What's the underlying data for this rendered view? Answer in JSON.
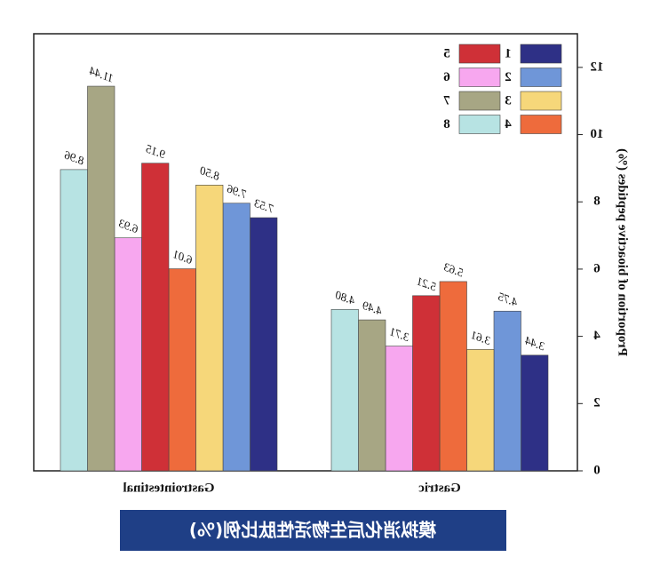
{
  "chart_data": {
    "type": "bar",
    "y_label": "Proportion of bioactive peptides (%)",
    "caption": "模拟消化后生物活性肽比例(%)",
    "categories": [
      "Gastric",
      "Gastrointestinal"
    ],
    "ylim": [
      0,
      13
    ],
    "yticks": [
      0,
      2,
      4,
      6,
      8,
      10,
      12
    ],
    "series": [
      {
        "name": "1",
        "color": "#2e3086",
        "values": [
          3.44,
          7.53
        ],
        "value_labels": [
          "3.44",
          "7.53"
        ]
      },
      {
        "name": "2",
        "color": "#6f96d8",
        "values": [
          4.75,
          7.96
        ],
        "value_labels": [
          "4.75",
          "7.96"
        ]
      },
      {
        "name": "3",
        "color": "#f6d77a",
        "values": [
          3.61,
          8.5
        ],
        "value_labels": [
          "3.61",
          "8.50"
        ]
      },
      {
        "name": "4",
        "color": "#ee6b3c",
        "values": [
          5.63,
          6.01
        ],
        "value_labels": [
          "5.63",
          "6.01"
        ]
      },
      {
        "name": "5",
        "color": "#cf3037",
        "values": [
          5.21,
          9.15
        ],
        "value_labels": [
          "5.21",
          "9.15"
        ]
      },
      {
        "name": "6",
        "color": "#f7a7ef",
        "values": [
          3.71,
          6.93
        ],
        "value_labels": [
          "3.71",
          "6.93"
        ]
      },
      {
        "name": "7",
        "color": "#a7a684",
        "values": [
          4.49,
          11.44
        ],
        "value_labels": [
          "4.49",
          "11.44"
        ]
      },
      {
        "name": "8",
        "color": "#b7e3e3",
        "values": [
          4.8,
          8.96
        ],
        "value_labels": [
          "4.80",
          "8.96"
        ]
      }
    ]
  }
}
